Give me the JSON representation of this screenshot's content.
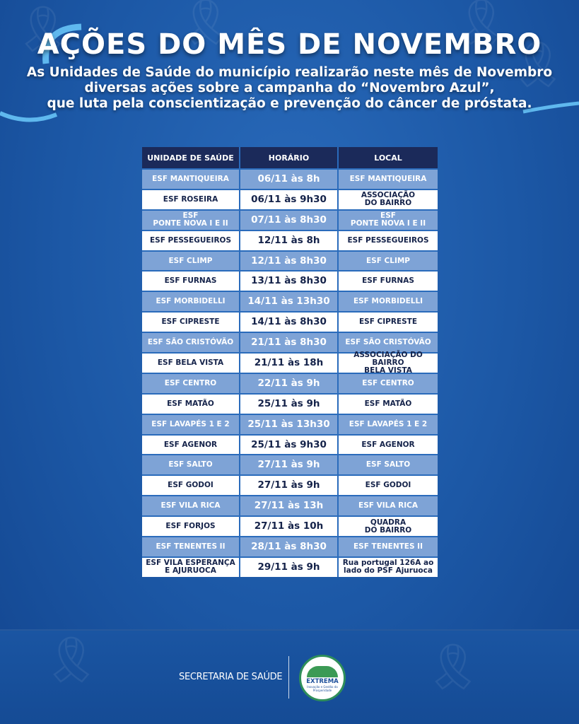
{
  "header": {
    "title": "AÇÕES DO MÊS DE NOVEMBRO",
    "subtitle_line1": "As Unidades de Saúde do município realizarão neste mês de Novembro",
    "subtitle_line2": "diversas ações sobre a campanha do “Novembro Azul”,",
    "subtitle_line3": "que luta pela conscientização e prevenção do câncer de próstata."
  },
  "table": {
    "columns": [
      "UNIDADE DE SAÚDE",
      "HORÁRIO",
      "LOCAL"
    ],
    "rows": [
      {
        "unidade": "ESF MANTIQUEIRA",
        "horario": "06/11 às 8h",
        "local": "ESF MANTIQUEIRA"
      },
      {
        "unidade": "ESF ROSEIRA",
        "horario": "06/11 às 9h30",
        "local": "ASSOCIAÇÃO\nDO BAIRRO"
      },
      {
        "unidade": "ESF\nPONTE NOVA I E II",
        "horario": "07/11 às 8h30",
        "local": "ESF\nPONTE NOVA I E II"
      },
      {
        "unidade": "ESF PESSEGUEIROS",
        "horario": "12/11 às 8h",
        "local": "ESF PESSEGUEIROS"
      },
      {
        "unidade": "ESF CLIMP",
        "horario": "12/11 às 8h30",
        "local": "ESF CLIMP"
      },
      {
        "unidade": "ESF FURNAS",
        "horario": "13/11 às 8h30",
        "local": "ESF FURNAS"
      },
      {
        "unidade": "ESF MORBIDELLI",
        "horario": "14/11 às 13h30",
        "local": "ESF MORBIDELLI"
      },
      {
        "unidade": "ESF CIPRESTE",
        "horario": "14/11 às 8h30",
        "local": "ESF CIPRESTE"
      },
      {
        "unidade": "ESF SÃO CRISTÓVÃO",
        "horario": "21/11 às 8h30",
        "local": "ESF SÃO CRISTÓVÃO"
      },
      {
        "unidade": "ESF BELA VISTA",
        "horario": "21/11 às 18h",
        "local": "ASSOCIAÇÃO DO BAIRRO\nBELA VISTA"
      },
      {
        "unidade": "ESF CENTRO",
        "horario": "22/11 às 9h",
        "local": "ESF CENTRO"
      },
      {
        "unidade": "ESF MATÃO",
        "horario": "25/11 às 9h",
        "local": "ESF MATÃO"
      },
      {
        "unidade": "ESF LAVAPÉS 1 E 2",
        "horario": "25/11 às 13h30",
        "local": "ESF LAVAPÉS 1 E 2"
      },
      {
        "unidade": "ESF AGENOR",
        "horario": "25/11 às 9h30",
        "local": "ESF AGENOR"
      },
      {
        "unidade": "ESF SALTO",
        "horario": "27/11 às 9h",
        "local": "ESF SALTO"
      },
      {
        "unidade": "ESF GODOI",
        "horario": "27/11 às 9h",
        "local": "ESF GODOI"
      },
      {
        "unidade": "ESF VILA RICA",
        "horario": "27/11 às 13h",
        "local": "ESF VILA RICA"
      },
      {
        "unidade": "ESF FORJOS",
        "horario": "27/11 às 10h",
        "local": "QUADRA\nDO BAIRRO"
      },
      {
        "unidade": "ESF TENENTES II",
        "horario": "28/11 às 8h30",
        "local": "ESF TENENTES II"
      },
      {
        "unidade": "ESF VILA ESPERANÇA\nE AJURUOCA",
        "horario": "29/11 às 9h",
        "local": "Rua portugal 126A ao\nlado do PSF Ajuruoca"
      }
    ]
  },
  "footer": {
    "secretaria": "SECRETARIA DE SAÚDE",
    "logo_name": "EXTREMA",
    "logo_sub": "Inovação e Gestão da Prosperidade"
  },
  "colors": {
    "background": "#1f5fae",
    "header_row": "#1b2a5a",
    "light_row": "#7ea3d6",
    "white_row": "#ffffff",
    "dark_text": "#15234a"
  },
  "icons": [
    "blue-ribbon-icon",
    "prefeitura-extrema-logo-icon"
  ]
}
